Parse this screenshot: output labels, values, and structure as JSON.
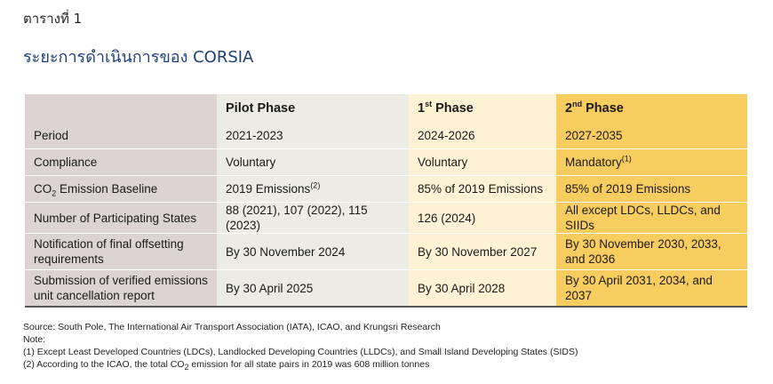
{
  "table_label": "ตารางที่ 1",
  "title": "ระยะการดำเนินการของ CORSIA",
  "header": {
    "pilot": "Pilot Phase",
    "phase1_num": "1",
    "phase1_sup": "st",
    "phase1_word": " Phase",
    "phase2_num": "2",
    "phase2_sup": "nd",
    "phase2_word": " Phase"
  },
  "rows": {
    "period": {
      "label": "Period",
      "pilot": "2021-2023",
      "p1": "2024-2026",
      "p2": "2027-2035"
    },
    "compliance": {
      "label": "Compliance",
      "pilot": "Voluntary",
      "p1": "Voluntary",
      "p2": "Mandatory",
      "p2_note": "(1)"
    },
    "baseline": {
      "label_pre": "CO",
      "label_sub": "2",
      "label_post": " Emission Baseline",
      "pilot": "2019 Emissions",
      "pilot_note": "(2)",
      "p1": "85% of 2019 Emissions",
      "p2": "85% of 2019 Emissions"
    },
    "states": {
      "label": "Number of Participating States",
      "pilot": "88 (2021), 107 (2022), 115 (2023)",
      "p1": "126 (2024)",
      "p2": "All except LDCs, LLDCs, and SIIDs"
    },
    "notification": {
      "label": "Notification of final offsetting requirements",
      "pilot": "By 30 November 2024",
      "p1": "By 30 November 2027",
      "p2": "By 30 November 2030, 2033, and 2036"
    },
    "submission": {
      "label": "Submission of verified emissions unit cancellation report",
      "pilot": "By 30 April 2025",
      "p1": "By 30 April 2028",
      "p2": "By 30 April 2031, 2034, and 2037"
    }
  },
  "footer": {
    "source": "Source: South Pole, The International Air Transport Association (IATA), ICAO, and Krungsri Research",
    "note_label": "Note:",
    "note1": "(1) Except Least Developed Countries (LDCs), Landlocked Developing Countries (LLDCs), and Small Island Developing States (SIDS)",
    "note2_pre": "(2) According to the ICAO, the total CO",
    "note2_sub": "2",
    "note2_post": " emission for all state pairs in 2019 was 608 million tonnes"
  }
}
